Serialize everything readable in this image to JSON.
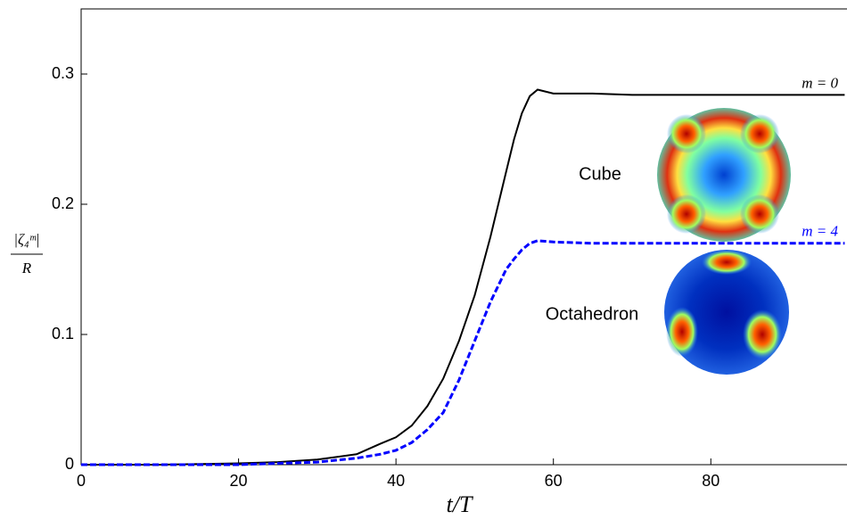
{
  "chart_data": {
    "type": "line",
    "xlabel": "t/T",
    "ylabel_numerator": "|ζ₄ᵐ|",
    "ylabel_denominator": "R",
    "annotations": [
      "Cube",
      "Octahedron"
    ],
    "x": [
      0,
      10,
      20,
      25,
      30,
      35,
      38,
      40,
      42,
      44,
      46,
      48,
      50,
      52,
      54,
      55,
      56,
      57,
      58,
      60,
      65,
      70,
      80,
      90,
      97
    ],
    "series": [
      {
        "name": "m = 0",
        "color": "#000000",
        "values": [
          0,
          0,
          0.001,
          0.002,
          0.004,
          0.008,
          0.016,
          0.021,
          0.03,
          0.045,
          0.066,
          0.095,
          0.13,
          0.175,
          0.225,
          0.25,
          0.27,
          0.283,
          0.288,
          0.285,
          0.285,
          0.284,
          0.284,
          0.284,
          0.284
        ]
      },
      {
        "name": "m = 4",
        "color": "#0000ff",
        "values": [
          0,
          0,
          0,
          0.001,
          0.002,
          0.005,
          0.008,
          0.011,
          0.017,
          0.027,
          0.04,
          0.065,
          0.095,
          0.125,
          0.15,
          0.158,
          0.165,
          0.17,
          0.172,
          0.171,
          0.17,
          0.17,
          0.17,
          0.17,
          0.17
        ]
      }
    ],
    "xlim": [
      0,
      97.3
    ],
    "xticks": [
      0,
      20,
      40,
      60,
      80
    ],
    "ylim": [
      0,
      0.35
    ],
    "yticks": [
      0,
      0.1,
      0.2,
      0.3
    ]
  }
}
